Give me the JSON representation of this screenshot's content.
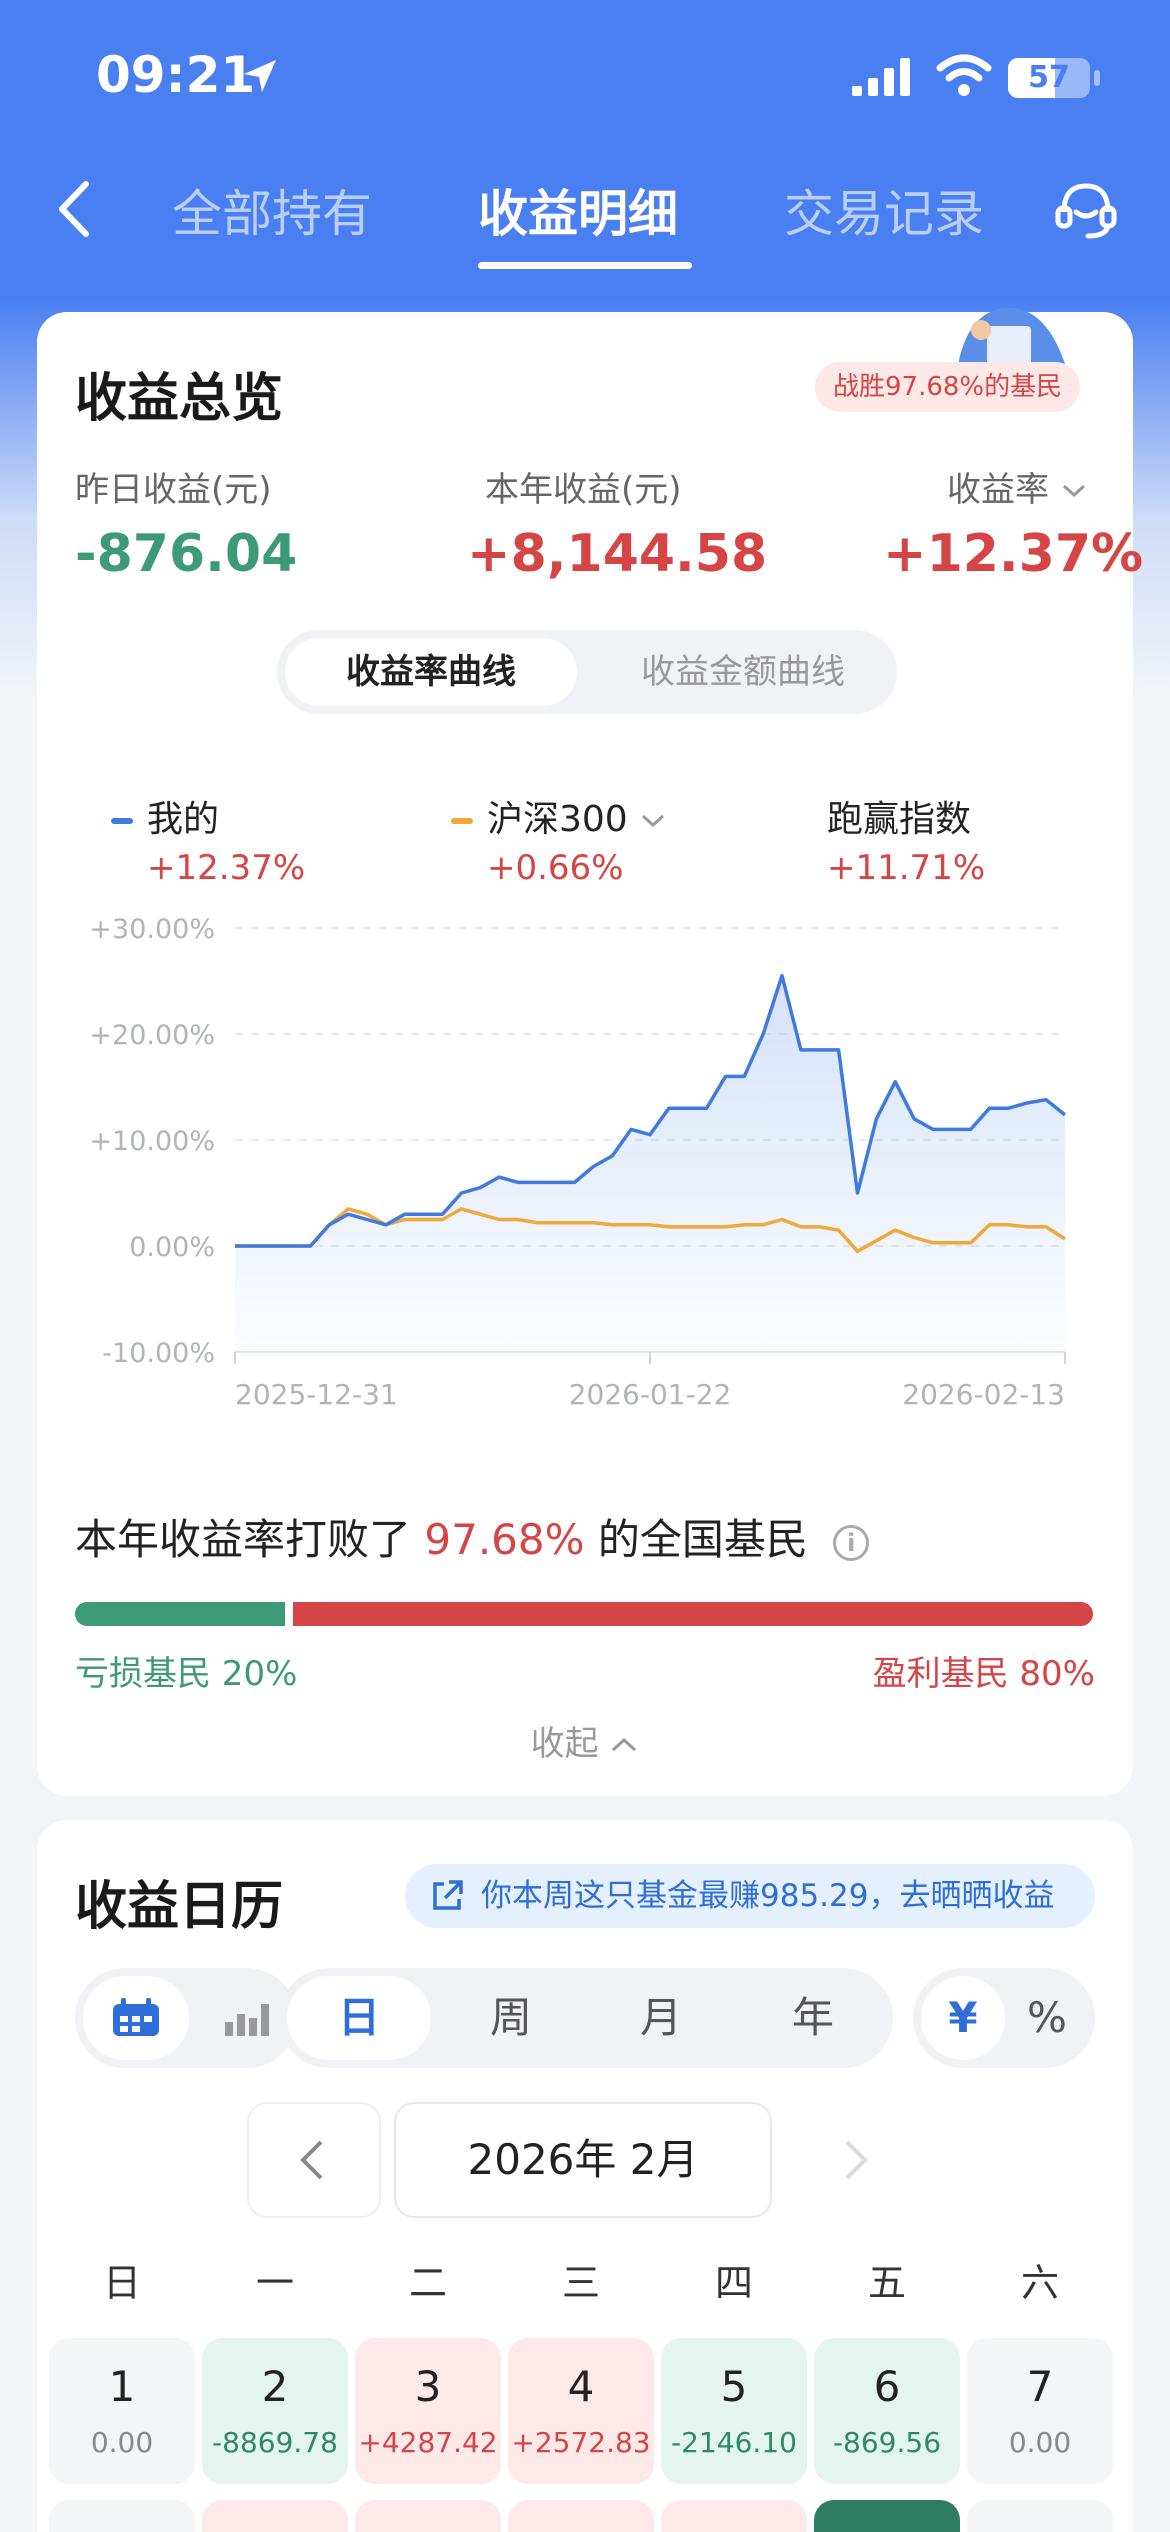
{
  "status_bar": {
    "time": "09:21",
    "battery": "57"
  },
  "nav": {
    "tabs": [
      {
        "label": "全部持有"
      },
      {
        "label": "收益明细"
      },
      {
        "label": "交易记录"
      }
    ]
  },
  "overview": {
    "title": "收益总览",
    "badge": "战胜97.68%的基民",
    "stats": [
      {
        "label": "昨日收益(元)",
        "value": "-876.04",
        "color": "#3d9a76"
      },
      {
        "label": "本年收益(元)",
        "value": "+8,144.58",
        "color": "#d64545"
      },
      {
        "label": "收益率",
        "value": "+12.37%",
        "color": "#d64545"
      }
    ],
    "chart_tabs": [
      "收益率曲线",
      "收益金额曲线"
    ]
  },
  "legend": [
    {
      "name": "我的",
      "value": "+12.37%",
      "color": "#3f7ae0"
    },
    {
      "name": "沪深300",
      "value": "+0.66%",
      "color": "#f0a83a"
    },
    {
      "name": "跑赢指数",
      "value": "+11.71%"
    }
  ],
  "chart_data": {
    "type": "line",
    "ylim": [
      -10,
      30
    ],
    "y_ticks": [
      "+30.00%",
      "+20.00%",
      "+10.00%",
      "0.00%",
      "-10.00%"
    ],
    "x_ticks": [
      "2025-12-31",
      "2026-01-22",
      "2026-02-13"
    ],
    "x": [
      0,
      1,
      2,
      3,
      4,
      5,
      6,
      7,
      8,
      9,
      10,
      11,
      12,
      13,
      14,
      15,
      16,
      17,
      18,
      19,
      20,
      21,
      22,
      23,
      24,
      25,
      26,
      27,
      28,
      29,
      30,
      31,
      32,
      33,
      34,
      35,
      36,
      37,
      38,
      39,
      40,
      41,
      42,
      43,
      44
    ],
    "series": [
      {
        "name": "我的",
        "color": "#3f7ae0",
        "values": [
          0,
          0,
          0,
          0,
          0,
          2,
          3,
          2.5,
          2,
          3,
          3,
          3,
          5,
          5.5,
          6.5,
          6,
          6,
          6,
          6,
          7.5,
          8.5,
          11,
          10.5,
          13,
          13,
          13,
          16,
          16,
          20,
          25.5,
          18.5,
          18.5,
          18.5,
          5,
          12,
          15.5,
          12,
          11,
          11,
          11,
          13,
          13,
          13.5,
          13.8,
          12.37
        ]
      },
      {
        "name": "沪深300",
        "color": "#f0a83a",
        "values": [
          0,
          0,
          0,
          0,
          0,
          2,
          3.5,
          3,
          2,
          2.5,
          2.5,
          2.5,
          3.5,
          3,
          2.5,
          2.5,
          2.2,
          2.2,
          2.2,
          2.2,
          2,
          2,
          2,
          1.8,
          1.8,
          1.8,
          1.8,
          2,
          2,
          2.5,
          1.8,
          1.8,
          1.5,
          -0.5,
          0.5,
          1.5,
          0.8,
          0.3,
          0.3,
          0.3,
          2,
          2,
          1.8,
          1.8,
          0.66
        ]
      }
    ]
  },
  "beat": {
    "prefix": "本年收益率打败了",
    "pct": "97.68%",
    "suffix": "的全国基民",
    "loss": "亏损基民 20%",
    "profit": "盈利基民 80%",
    "collapse": "收起"
  },
  "calendar": {
    "title": "收益日历",
    "share": "你本周这只基金最赚985.29，去晒晒收益",
    "periods": [
      "日",
      "周",
      "月",
      "年"
    ],
    "units": [
      "¥",
      "%"
    ],
    "month": "2026年 2月",
    "weekdays": [
      "日",
      "一",
      "二",
      "三",
      "四",
      "五",
      "六"
    ],
    "days": [
      {
        "num": "1",
        "val": "0.00",
        "kind": "zero"
      },
      {
        "num": "2",
        "val": "-8869.78",
        "kind": "loss"
      },
      {
        "num": "3",
        "val": "+4287.42",
        "kind": "gain"
      },
      {
        "num": "4",
        "val": "+2572.83",
        "kind": "gain"
      },
      {
        "num": "5",
        "val": "-2146.10",
        "kind": "loss"
      },
      {
        "num": "6",
        "val": "-869.56",
        "kind": "loss"
      },
      {
        "num": "7",
        "val": "0.00",
        "kind": "zero"
      }
    ]
  }
}
